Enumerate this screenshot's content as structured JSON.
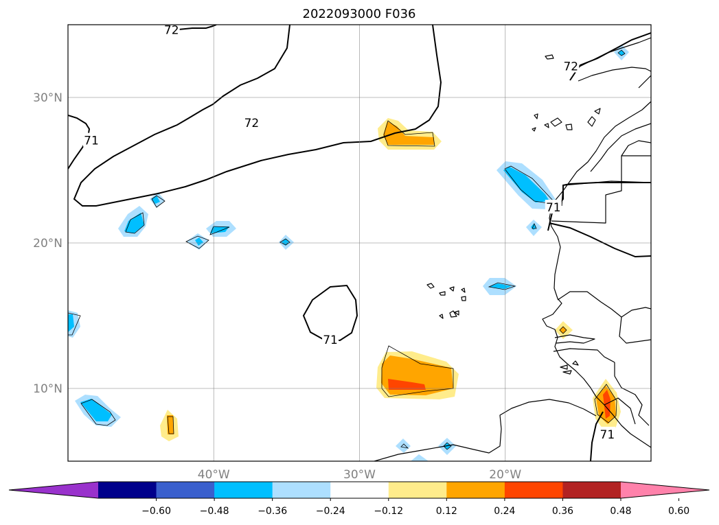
{
  "title": "2022093000 F036",
  "chart_data": {
    "type": "contour-map",
    "title": "2022093000 F036",
    "lon_range": [
      -50,
      -10
    ],
    "lat_range": [
      5,
      35
    ],
    "lat_ticks": [
      {
        "lat": 30,
        "label": "30°N"
      },
      {
        "lat": 20,
        "label": "20°N"
      },
      {
        "lat": 10,
        "label": "10°N"
      }
    ],
    "lon_ticks": [
      {
        "lon": -40,
        "label": "40°W"
      },
      {
        "lon": -30,
        "label": "30°W"
      },
      {
        "lon": -20,
        "label": "20°W"
      }
    ],
    "contour_labels": [
      {
        "value": "72",
        "lon": -42.9,
        "lat": 34.6
      },
      {
        "value": "72",
        "lon": -37.4,
        "lat": 28.2
      },
      {
        "value": "71",
        "lon": -48.4,
        "lat": 27.0
      },
      {
        "value": "71",
        "lon": -32.0,
        "lat": 13.3
      },
      {
        "value": "72",
        "lon": -15.5,
        "lat": 32.1
      },
      {
        "value": "71",
        "lon": -16.7,
        "lat": 22.4
      },
      {
        "value": "71",
        "lon": -13.0,
        "lat": 6.8
      }
    ],
    "colorbar": {
      "colors": [
        "#9932CC",
        "#00008B",
        "#3A5FCD",
        "#00BFFF",
        "#ADDFFF",
        "#FFFFFF",
        "#FFEC8B",
        "#FFA500",
        "#FF4500",
        "#B22222",
        "#FF82AB"
      ],
      "extend": "both",
      "ticks": [
        "−0.60",
        "−0.48",
        "−0.36",
        "−0.24",
        "−0.12",
        "0.12",
        "0.24",
        "0.36",
        "0.48",
        "0.60"
      ]
    }
  }
}
